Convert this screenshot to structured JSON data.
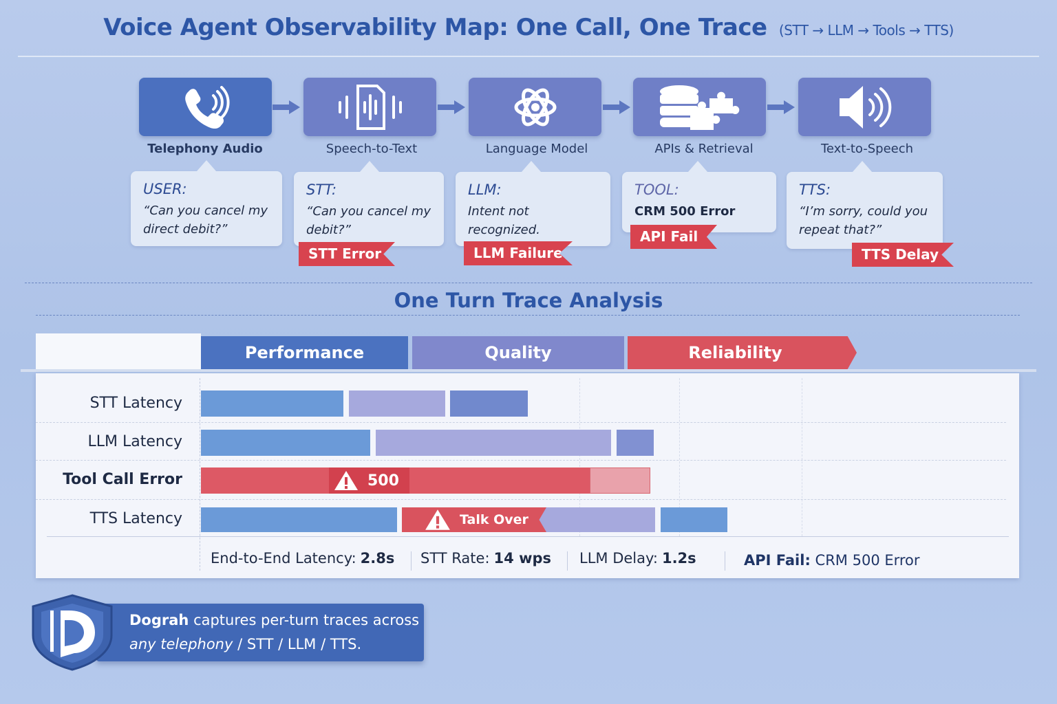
{
  "header": {
    "title": "Voice Agent Observability Map: One Call, One Trace",
    "subtitle": "(STT → LLM → Tools → TTS)"
  },
  "pipeline": [
    {
      "label": "Telephony Audio",
      "icon": "phone-icon",
      "speaker": "USER:",
      "text": "“Can you cancel my direct debit?”",
      "tag": ""
    },
    {
      "label": "Speech-to-Text",
      "icon": "audio-file-icon",
      "speaker": "STT:",
      "text": "“Can you cancel my debit?”",
      "tag": "STT Error"
    },
    {
      "label": "Language Model",
      "icon": "llm-knot-icon",
      "speaker": "LLM:",
      "text": "Intent not recognized.",
      "tag": "LLM Failure"
    },
    {
      "label": "APIs & Retrieval",
      "icon": "database-puzzle-icon",
      "speaker": "TOOL:",
      "text": "CRM 500 Error",
      "tag": "API Fail"
    },
    {
      "label": "Text-to-Speech",
      "icon": "speaker-icon",
      "speaker": "TTS:",
      "text": "“I’m sorry, could you repeat that?”",
      "tag": "TTS Delay"
    }
  ],
  "trace": {
    "title": "One Turn Trace Analysis",
    "columns": [
      "Performance",
      "Quality",
      "Reliability"
    ],
    "colors": {
      "performance": "#4b72c0",
      "quality": "#8088cc",
      "reliability": "#d9535e"
    },
    "rows": [
      "STT Latency",
      "LLM Latency",
      "Tool Call Error",
      "TTS Latency"
    ],
    "annotations": {
      "tool_error": "500",
      "tts": "Talk Over"
    },
    "stats": [
      {
        "label": "End-to-End Latency:",
        "value": "2.8s"
      },
      {
        "label": "STT Rate:",
        "value": "14 wps"
      },
      {
        "label": "LLM Delay:",
        "value": "1.2s"
      },
      {
        "label": "API Fail:",
        "value": "CRM 500 Error"
      }
    ]
  },
  "footer": {
    "brand": "Dograh",
    "line1": "captures per-turn traces across",
    "line2_italic": "any telephony",
    "line2": "/ STT / LLM / TTS."
  }
}
